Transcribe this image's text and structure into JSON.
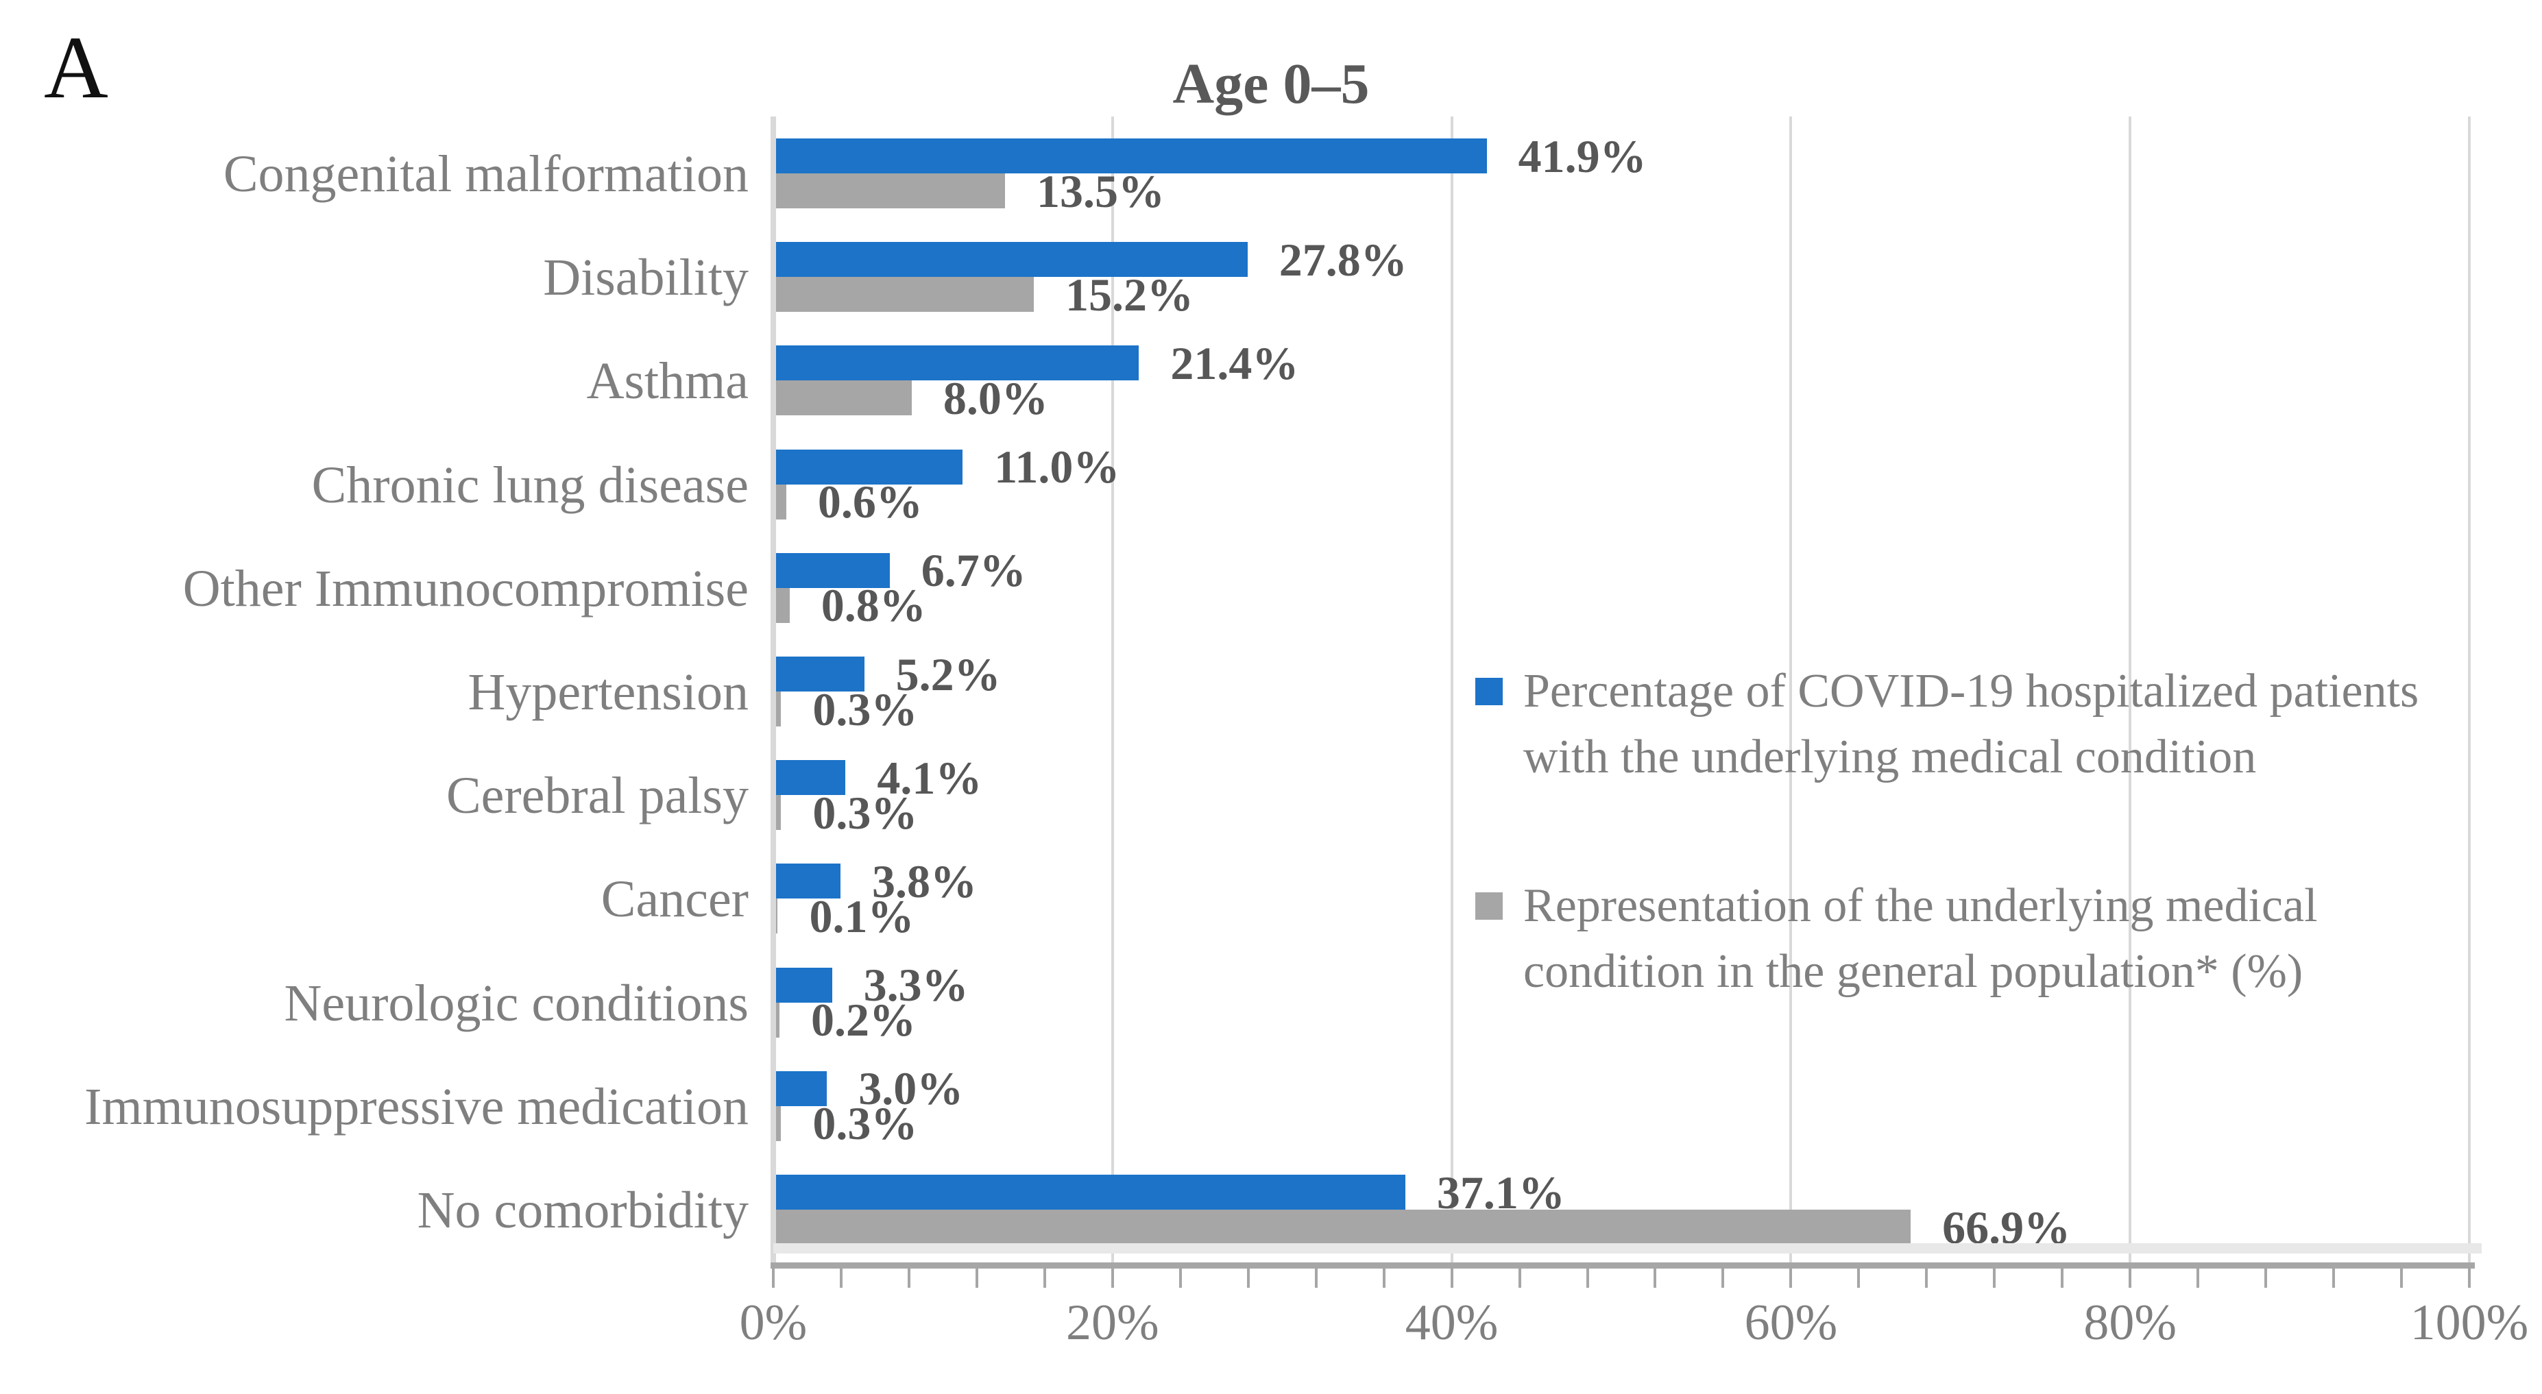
{
  "panel_label": "A",
  "chart_data": {
    "type": "bar",
    "orientation": "horizontal",
    "title": "Age 0–5",
    "categories": [
      "Congenital malformation",
      "Disability",
      "Asthma",
      "Chronic lung disease",
      "Other Immunocompromise",
      "Hypertension",
      "Cerebral palsy",
      "Cancer",
      "Neurologic conditions",
      "Immunosuppressive medication",
      "No comorbidity"
    ],
    "series": [
      {
        "name": "Percentage of COVID-19 hospitalized patients with the underlying medical condition",
        "legend_lines": [
          "Percentage of COVID-19 hospitalized patients",
          "with the underlying medical condition"
        ],
        "color": "#1c73c8",
        "values": [
          41.9,
          27.8,
          21.4,
          11.0,
          6.7,
          5.2,
          4.1,
          3.8,
          3.3,
          3.0,
          37.1
        ],
        "labels": [
          "41.9%",
          "27.8%",
          "21.4%",
          "11.0%",
          "6.7%",
          "5.2%",
          "4.1%",
          "3.8%",
          "3.3%",
          "3.0%",
          "37.1%"
        ]
      },
      {
        "name": "Representation of the underlying medical condition in the general population* (%)",
        "legend_lines": [
          "Representation of the underlying medical",
          "condition in the general population* (%)"
        ],
        "color": "#a6a6a6",
        "values": [
          13.5,
          15.2,
          8.0,
          0.6,
          0.8,
          0.3,
          0.3,
          0.1,
          0.2,
          0.3,
          66.9
        ],
        "labels": [
          "13.5%",
          "15.2%",
          "8.0%",
          "0.6%",
          "0.8%",
          "0.3%",
          "0.3%",
          "0.1%",
          "0.2%",
          "0.3%",
          "66.9%"
        ]
      }
    ],
    "xlabel": "",
    "ylabel": "",
    "xlim": [
      0,
      100
    ],
    "x_ticks": {
      "values": [
        0,
        20,
        40,
        60,
        80,
        100
      ],
      "labels": [
        "0%",
        "20%",
        "40%",
        "60%",
        "80%",
        "100%"
      ]
    },
    "minor_tick_unit_pct": 4,
    "grid": true,
    "legend_position": "middle-right",
    "colors": {
      "series1": "#1c73c8",
      "series2": "#a6a6a6",
      "gridline": "#d9d9d9",
      "axis_line": "#a6a6a6",
      "title_text": "#595959",
      "value_text": "#575757",
      "label_text": "#7f7f7f",
      "panel_letter": "#111111"
    }
  }
}
